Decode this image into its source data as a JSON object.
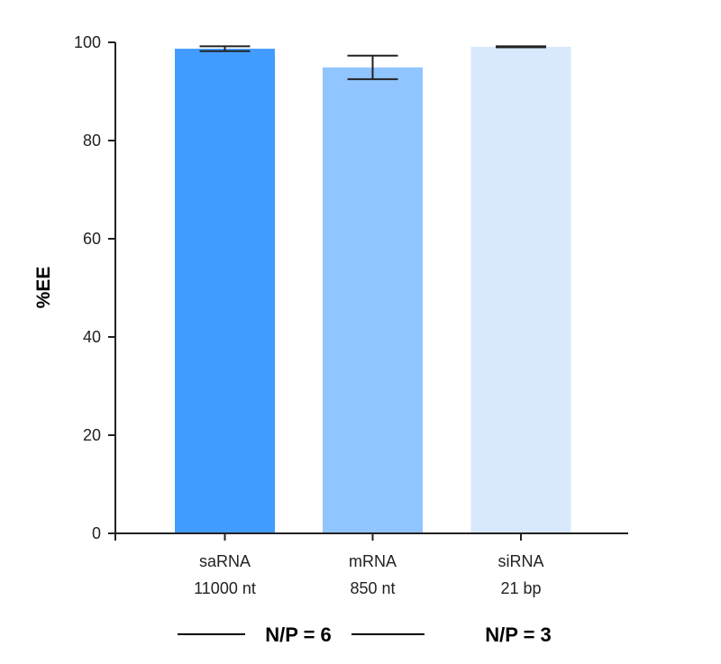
{
  "chart_data": {
    "type": "bar",
    "title": "",
    "xlabel": "",
    "ylabel": "%EE",
    "ylim": [
      0,
      100
    ],
    "yticks": [
      0,
      20,
      40,
      60,
      80,
      100
    ],
    "categories": [
      [
        "saRNA",
        "11000 nt"
      ],
      [
        "mRNA",
        "850 nt"
      ],
      [
        "siRNA",
        "21 bp"
      ]
    ],
    "values": [
      98.7,
      94.9,
      99.1
    ],
    "errors": [
      0.5,
      2.4,
      0.1
    ],
    "colors": [
      "#429cff",
      "#91c5ff",
      "#d8e9fd"
    ],
    "groups": [
      {
        "label": "N/P = 6",
        "categories": [
          0,
          1
        ]
      },
      {
        "label": "N/P = 3",
        "categories": [
          2
        ]
      }
    ],
    "grid": false
  }
}
